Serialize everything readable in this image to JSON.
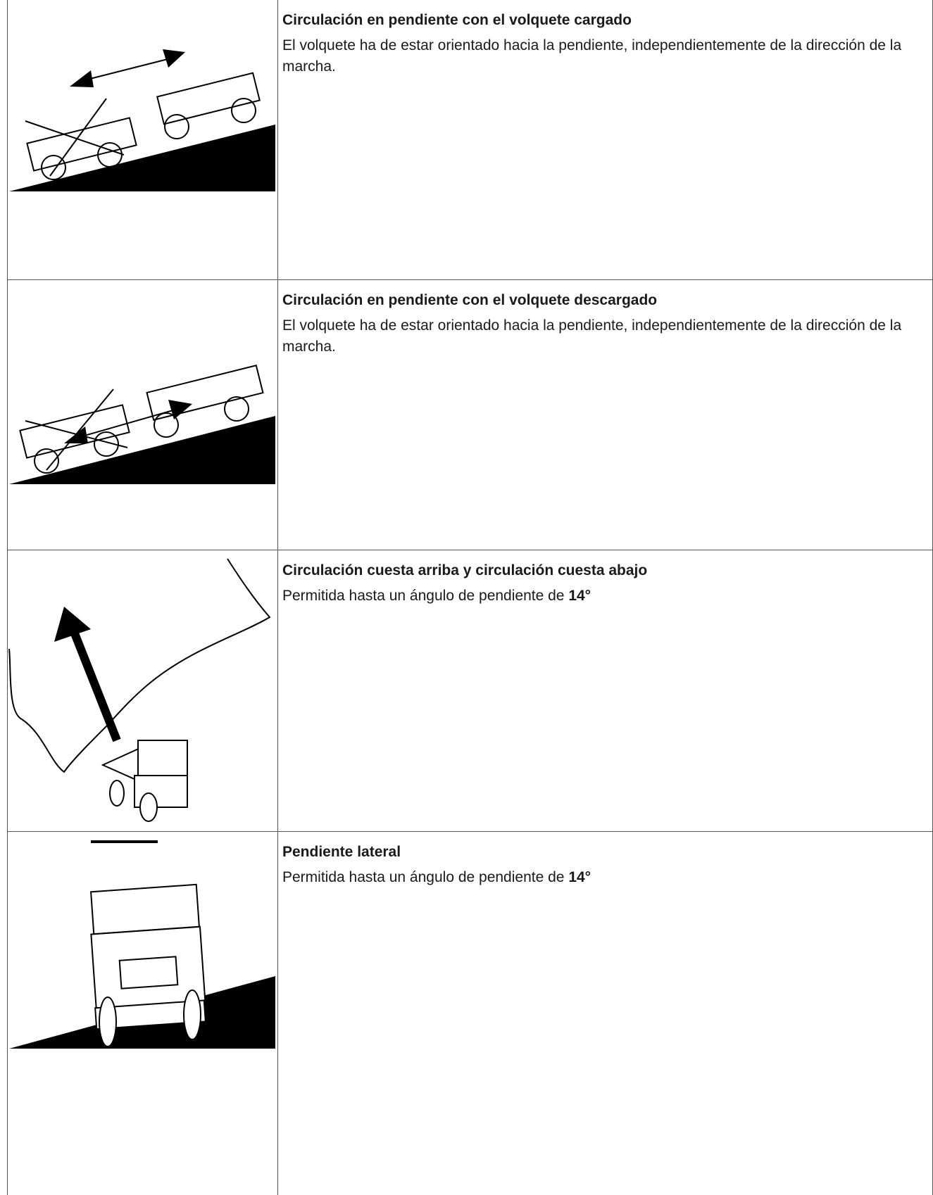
{
  "rows": [
    {
      "title": "Circulación en pendiente con el volquete cargado",
      "body": "El volquete ha de estar orientado hacia la pendiente, independientemente de la dirección de la marcha."
    },
    {
      "title": "Circulación en pendiente con el volquete descargado",
      "body": "El volquete ha de estar orientado hacia la pendiente, independientemente de la dirección de la marcha."
    },
    {
      "title": "Circulación cuesta arriba y circulación cuesta abajo",
      "body": "Permitida hasta un ángulo de pendiente de ",
      "emphasis": "14°"
    },
    {
      "title": "Pendiente lateral",
      "body": "Permitida hasta un ángulo de pendiente de ",
      "emphasis": "14°"
    }
  ]
}
